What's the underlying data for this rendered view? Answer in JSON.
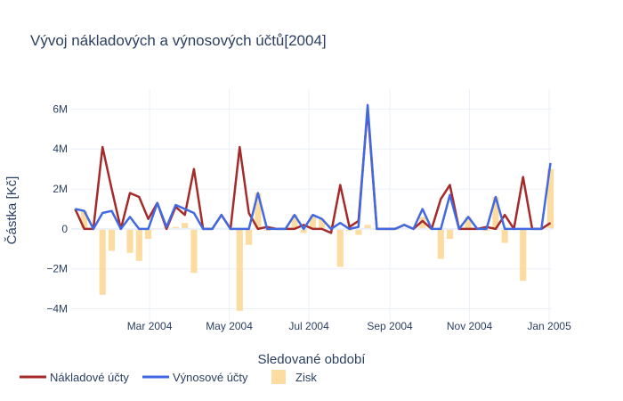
{
  "chart_data": {
    "type": "bar+line",
    "title": "Vývoj nákladových a výnosových účtů[2004]",
    "xlabel": "Sledované období",
    "ylabel": "Částka [Kč]",
    "x_range": [
      "2004-01-01",
      "2005-01-03"
    ],
    "ylim": [
      -4600000,
      7000000
    ],
    "x_ticks": [
      {
        "date": "2004-03-01",
        "label": "Mar 2004"
      },
      {
        "date": "2004-05-01",
        "label": "May 2004"
      },
      {
        "date": "2004-07-01",
        "label": "Jul 2004"
      },
      {
        "date": "2004-09-01",
        "label": "Sep 2004"
      },
      {
        "date": "2004-11-01",
        "label": "Nov 2004"
      },
      {
        "date": "2005-01-01",
        "label": "Jan 2005"
      }
    ],
    "y_ticks": [
      {
        "value": 6000000,
        "label": "6M"
      },
      {
        "value": 4000000,
        "label": "4M"
      },
      {
        "value": 2000000,
        "label": "2M"
      },
      {
        "value": 0,
        "label": "0"
      },
      {
        "value": -2000000,
        "label": "−2M"
      },
      {
        "value": -4000000,
        "label": "−4M"
      }
    ],
    "grid": true,
    "legend_position": "bottom-left",
    "x": [
      "2004-01-04",
      "2004-01-11",
      "2004-01-18",
      "2004-01-25",
      "2004-02-01",
      "2004-02-08",
      "2004-02-15",
      "2004-02-22",
      "2004-02-29",
      "2004-03-07",
      "2004-03-14",
      "2004-03-21",
      "2004-03-28",
      "2004-04-04",
      "2004-04-11",
      "2004-04-18",
      "2004-04-25",
      "2004-05-02",
      "2004-05-09",
      "2004-05-16",
      "2004-05-23",
      "2004-05-30",
      "2004-06-06",
      "2004-06-13",
      "2004-06-20",
      "2004-06-27",
      "2004-07-04",
      "2004-07-11",
      "2004-07-18",
      "2004-07-25",
      "2004-08-01",
      "2004-08-08",
      "2004-08-15",
      "2004-08-22",
      "2004-08-29",
      "2004-09-05",
      "2004-09-12",
      "2004-09-19",
      "2004-09-26",
      "2004-10-03",
      "2004-10-10",
      "2004-10-17",
      "2004-10-24",
      "2004-10-31",
      "2004-11-07",
      "2004-11-14",
      "2004-11-21",
      "2004-11-28",
      "2004-12-05",
      "2004-12-12",
      "2004-12-19",
      "2004-12-26",
      "2005-01-02"
    ],
    "series": [
      {
        "name": "Nákladové účty",
        "kind": "line",
        "color": "#A52A2A",
        "values": [
          1000000,
          0,
          0,
          4100000,
          2000000,
          0,
          1800000,
          1600000,
          500000,
          1300000,
          0,
          1100000,
          700000,
          3000000,
          0,
          0,
          700000,
          0,
          4100000,
          800000,
          0,
          100000,
          0,
          0,
          0,
          200000,
          0,
          0,
          -200000,
          2200000,
          100000,
          400000,
          6000000,
          0,
          0,
          0,
          200000,
          0,
          400000,
          0,
          1500000,
          2200000,
          0,
          0,
          0,
          100000,
          0,
          700000,
          0,
          2600000,
          0,
          0,
          300000
        ]
      },
      {
        "name": "Výnosové účty",
        "kind": "line",
        "color": "#4169E1",
        "values": [
          1000000,
          900000,
          0,
          800000,
          900000,
          0,
          600000,
          0,
          0,
          1300000,
          100000,
          1200000,
          1000000,
          800000,
          0,
          0,
          700000,
          0,
          0,
          0,
          1800000,
          0,
          0,
          0,
          700000,
          0,
          700000,
          500000,
          0,
          300000,
          0,
          100000,
          6200000,
          0,
          0,
          0,
          200000,
          0,
          1000000,
          0,
          0,
          1700000,
          0,
          600000,
          0,
          0,
          1600000,
          0,
          0,
          0,
          0,
          0,
          3300000
        ]
      },
      {
        "name": "Zisk",
        "kind": "bar",
        "color": "#FDD38A",
        "values": [
          0,
          900000,
          0,
          -3300000,
          -1100000,
          0,
          -1200000,
          -1600000,
          -500000,
          0,
          100000,
          100000,
          300000,
          -2200000,
          0,
          0,
          0,
          0,
          -4100000,
          -800000,
          1800000,
          -100000,
          0,
          0,
          700000,
          -200000,
          700000,
          500000,
          200000,
          -1900000,
          -100000,
          -300000,
          200000,
          0,
          0,
          0,
          0,
          0,
          600000,
          0,
          -1500000,
          -500000,
          0,
          600000,
          0,
          -100000,
          1600000,
          -700000,
          0,
          -2600000,
          0,
          0,
          3000000
        ]
      }
    ]
  }
}
